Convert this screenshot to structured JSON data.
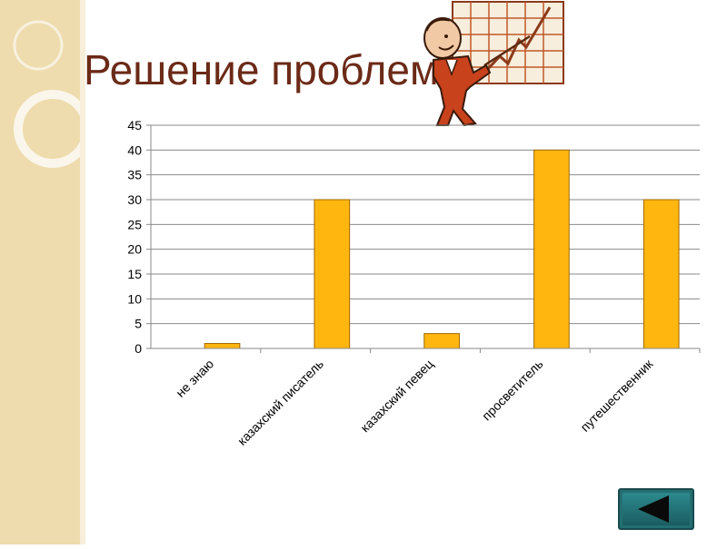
{
  "slide": {
    "title": "Решение проблем"
  },
  "colors": {
    "bar": "#ffb60f",
    "bar_stroke": "#a06800",
    "title": "#6b2a17",
    "accent": "#236f72"
  },
  "icons": {
    "presenter": "presenter-with-growth-chart-icon",
    "back": "back-arrow-icon"
  },
  "chart_data": {
    "type": "bar",
    "categories": [
      "не знаю",
      "казахский писатель",
      "казахский певец",
      "просветитель",
      "путешественник"
    ],
    "values": [
      1,
      30,
      3,
      40,
      30
    ],
    "ylim": [
      0,
      45
    ],
    "yticks": [
      "0",
      "5",
      "10",
      "15",
      "20",
      "25",
      "30",
      "35",
      "40",
      "45"
    ],
    "grid": true,
    "legend": "none"
  }
}
